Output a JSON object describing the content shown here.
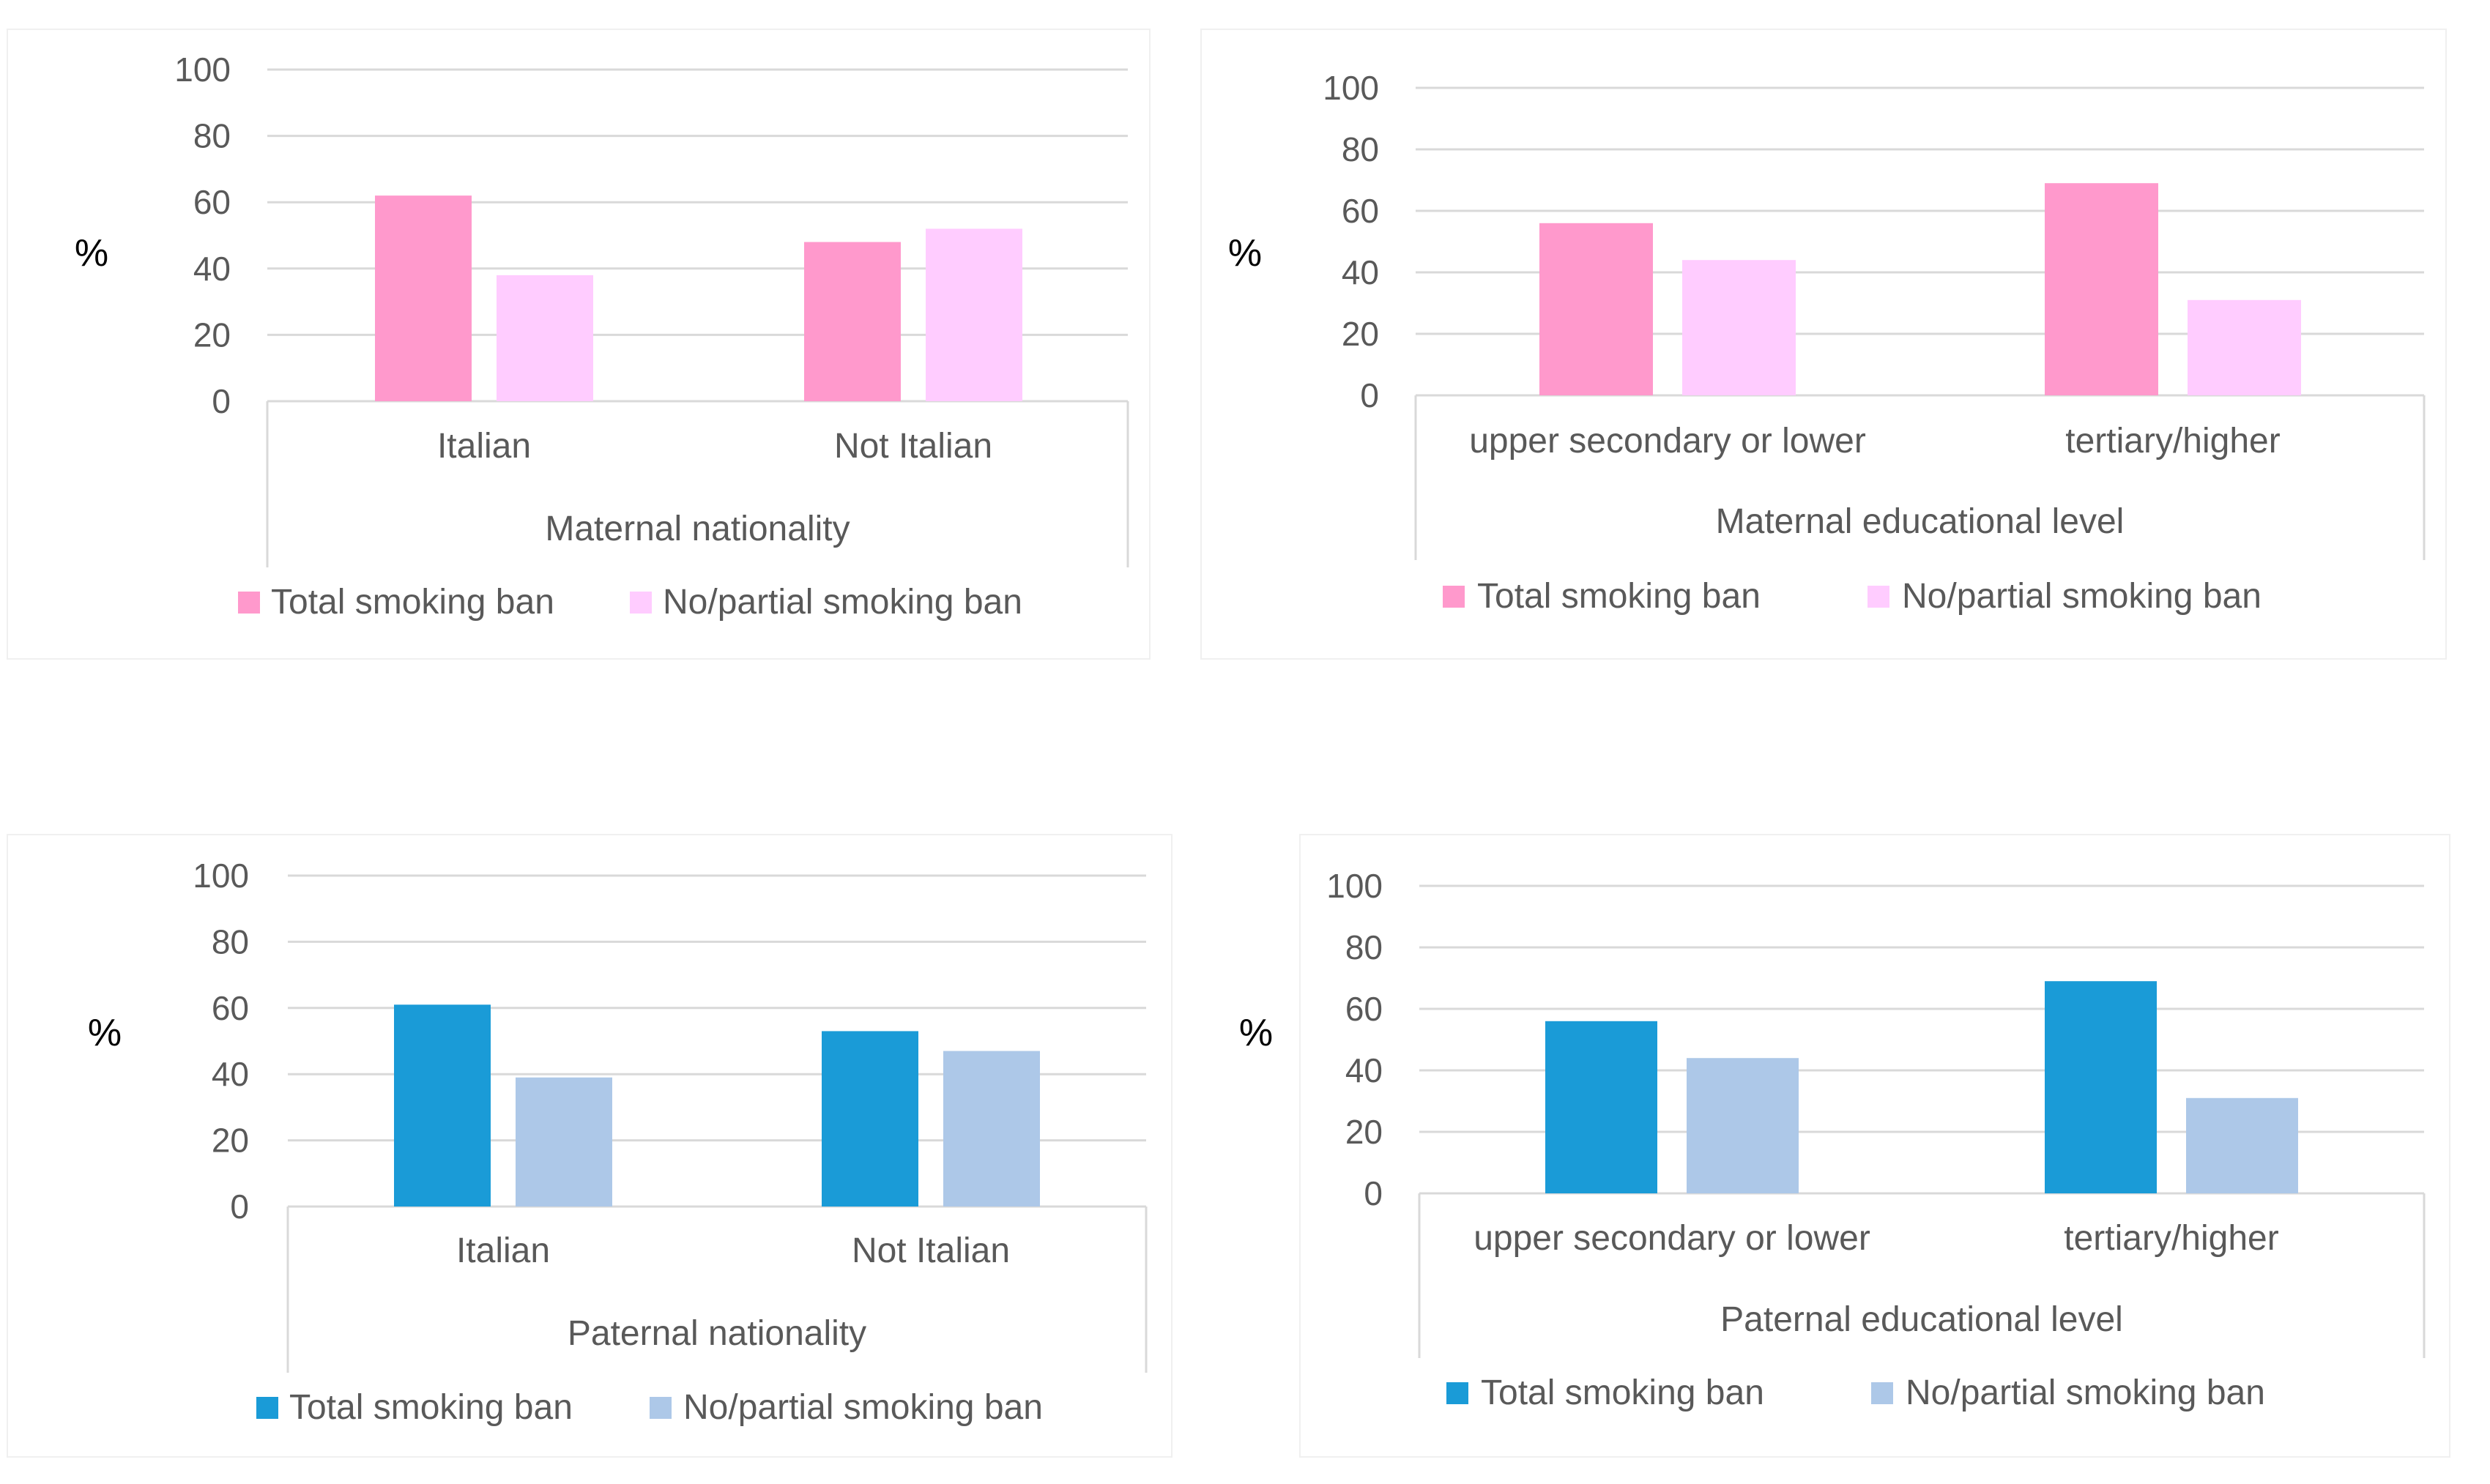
{
  "colors": {
    "maternal_total": "#ff99cc",
    "maternal_partial": "#ffccff",
    "paternal_total": "#1a9bd7",
    "paternal_partial": "#adc8e8"
  },
  "chart_data": [
    {
      "type": "bar",
      "id": "maternal-nationality",
      "categories": [
        "Italian",
        "Not Italian"
      ],
      "series": [
        {
          "name": "Total smoking ban",
          "values": [
            62,
            48
          ],
          "color": "#ff99cc"
        },
        {
          "name": "No/partial smoking ban",
          "values": [
            38,
            52
          ],
          "color": "#ffccff"
        }
      ],
      "xlabel": "Maternal nationality",
      "ylabel": "%",
      "ylim": [
        0,
        100
      ],
      "yticks": [
        "0",
        "20",
        "40",
        "60",
        "80",
        "100"
      ],
      "grid": true,
      "legend": "bottom"
    },
    {
      "type": "bar",
      "id": "maternal-education",
      "categories": [
        "upper secondary or lower",
        "tertiary/higher"
      ],
      "series": [
        {
          "name": "Total smoking ban",
          "values": [
            56,
            69
          ],
          "color": "#ff99cc"
        },
        {
          "name": "No/partial smoking ban",
          "values": [
            44,
            31
          ],
          "color": "#ffccff"
        }
      ],
      "xlabel": "Maternal educational level",
      "ylabel": "%",
      "ylim": [
        0,
        100
      ],
      "yticks": [
        "0",
        "20",
        "40",
        "60",
        "80",
        "100"
      ],
      "grid": true,
      "legend": "bottom"
    },
    {
      "type": "bar",
      "id": "paternal-nationality",
      "categories": [
        "Italian",
        "Not Italian"
      ],
      "series": [
        {
          "name": "Total smoking ban",
          "values": [
            61,
            53
          ],
          "color": "#1a9bd7"
        },
        {
          "name": "No/partial smoking ban",
          "values": [
            39,
            47
          ],
          "color": "#adc8e8"
        }
      ],
      "xlabel": "Paternal nationality",
      "ylabel": "%",
      "ylim": [
        0,
        100
      ],
      "yticks": [
        "0",
        "20",
        "40",
        "60",
        "80",
        "100"
      ],
      "grid": true,
      "legend": "bottom"
    },
    {
      "type": "bar",
      "id": "paternal-education",
      "categories": [
        "upper secondary or lower",
        "tertiary/higher"
      ],
      "series": [
        {
          "name": "Total smoking ban",
          "values": [
            56,
            69
          ],
          "color": "#1a9bd7"
        },
        {
          "name": "No/partial smoking ban",
          "values": [
            44,
            31
          ],
          "color": "#adc8e8"
        }
      ],
      "xlabel": "Paternal educational level",
      "ylabel": "%",
      "ylim": [
        0,
        100
      ],
      "yticks": [
        "0",
        "20",
        "40",
        "60",
        "80",
        "100"
      ],
      "grid": true,
      "legend": "bottom"
    }
  ]
}
